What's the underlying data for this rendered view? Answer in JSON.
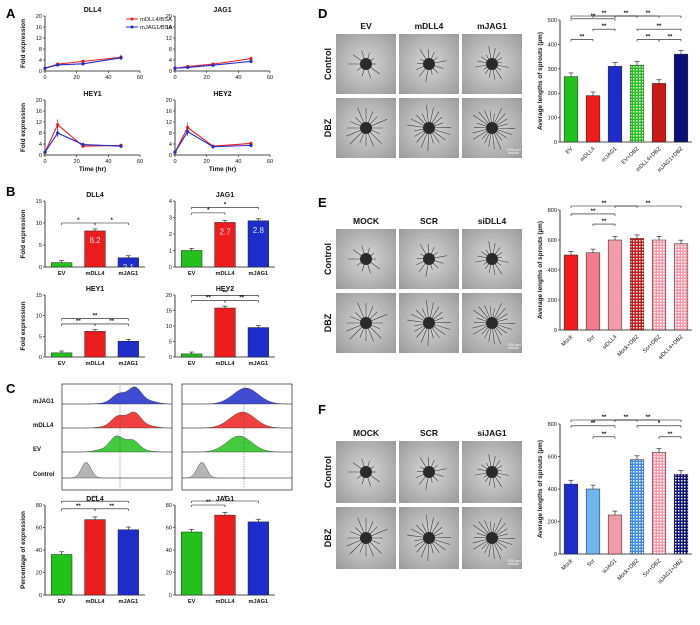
{
  "panel_labels": [
    "A",
    "B",
    "C",
    "D",
    "E",
    "F"
  ],
  "colors": {
    "red": "#ee1c1c",
    "blue": "#1f2ccc",
    "green": "#22c11b",
    "darkred": "#c81818",
    "navy": "#0a0f7a",
    "pink": "#f59aa9",
    "lightblue": "#6fb6ee",
    "grey": "#a8a8a8"
  },
  "panel_a": {
    "legend": [
      "mDLL4/BSA",
      "mJAG1/BSA"
    ],
    "xlabel": "Time (hr)",
    "ylabel": "Fold expression"
  },
  "panel_b": {
    "ylabel": "Fold expression"
  },
  "panel_c": {
    "hist_rows": [
      "mJAG1",
      "mDLL4",
      "EV",
      "Control"
    ],
    "ylabel": "Percentage of expression"
  },
  "micro_d": {
    "cols": [
      "EV",
      "mDLL4",
      "mJAG1"
    ],
    "rows": [
      "Control",
      "DBZ"
    ],
    "scale": "200 µm"
  },
  "micro_e": {
    "cols": [
      "MOCK",
      "SCR",
      "siDLL4"
    ],
    "rows": [
      "Control",
      "DBZ"
    ],
    "scale": "200 µm"
  },
  "micro_f": {
    "cols": [
      "MOCK",
      "SCR",
      "siJAG1"
    ],
    "rows": [
      "Control",
      "DBZ"
    ],
    "scale": "200 µm"
  },
  "chart_data": [
    {
      "id": "A1",
      "panel": "A",
      "type": "line",
      "title": "DLL4",
      "x": [
        0,
        8,
        24,
        48
      ],
      "series": [
        {
          "name": "mDLL4/BSA",
          "values": [
            1,
            2.5,
            3.5,
            5
          ]
        },
        {
          "name": "mJAG1/BSA",
          "values": [
            1,
            2.2,
            2.6,
            4.8
          ]
        }
      ],
      "xlim": [
        0,
        60
      ],
      "ylim": [
        0,
        20
      ],
      "yticks": [
        0,
        4,
        8,
        12,
        16,
        20
      ],
      "xticks": [
        0,
        20,
        40,
        60
      ],
      "xlabel": "",
      "ylabel": "Fold expression"
    },
    {
      "id": "A2",
      "panel": "A",
      "type": "line",
      "title": "JAG1",
      "x": [
        0,
        8,
        24,
        48
      ],
      "series": [
        {
          "name": "mDLL4/BSA",
          "values": [
            1,
            1.6,
            2.5,
            4.5
          ]
        },
        {
          "name": "mJAG1/BSA",
          "values": [
            1,
            1.3,
            2.1,
            3.5
          ]
        }
      ],
      "xlim": [
        0,
        60
      ],
      "ylim": [
        0,
        20
      ],
      "yticks": [
        0,
        4,
        8,
        12,
        16,
        20
      ],
      "xticks": [
        0,
        20,
        40,
        60
      ],
      "xlabel": "",
      "ylabel": ""
    },
    {
      "id": "A3",
      "panel": "A",
      "type": "line",
      "title": "HEY1",
      "x": [
        0,
        8,
        24,
        48
      ],
      "series": [
        {
          "name": "mDLL4/BSA",
          "values": [
            1,
            11,
            3.2,
            3.5
          ]
        },
        {
          "name": "mJAG1/BSA",
          "values": [
            1,
            8,
            3.8,
            3.2
          ]
        }
      ],
      "xlim": [
        0,
        60
      ],
      "ylim": [
        0,
        20
      ],
      "yticks": [
        0,
        4,
        8,
        12,
        16,
        20
      ],
      "xticks": [
        0,
        20,
        40,
        60
      ],
      "xlabel": "Time (hr)",
      "ylabel": "Fold expression"
    },
    {
      "id": "A4",
      "panel": "A",
      "type": "line",
      "title": "HEY2",
      "x": [
        0,
        8,
        24,
        48
      ],
      "series": [
        {
          "name": "mDLL4/BSA",
          "values": [
            1,
            10,
            3.2,
            4.2
          ]
        },
        {
          "name": "mJAG1/BSA",
          "values": [
            1,
            8.5,
            3.0,
            3.5
          ]
        }
      ],
      "xlim": [
        0,
        60
      ],
      "ylim": [
        0,
        20
      ],
      "yticks": [
        0,
        4,
        8,
        12,
        16,
        20
      ],
      "xticks": [
        0,
        20,
        40,
        60
      ],
      "xlabel": "Time (hr)",
      "ylabel": ""
    },
    {
      "id": "B1",
      "panel": "B",
      "type": "bar",
      "title": "DLL4",
      "categories": [
        "EV",
        "mDLL4",
        "mJAG1"
      ],
      "values": [
        1,
        8.2,
        2.1
      ],
      "labels": [
        "",
        "8.2",
        "2.1"
      ],
      "ylim": [
        0,
        15
      ],
      "yticks": [
        0,
        5,
        10,
        15
      ],
      "ylabel": "Fold expression",
      "sig": [
        {
          "a": 0,
          "b": 1,
          "text": "*",
          "level": 0
        },
        {
          "a": 1,
          "b": 2,
          "text": "*",
          "level": 0
        }
      ]
    },
    {
      "id": "B2",
      "panel": "B",
      "type": "bar",
      "title": "JAG1",
      "categories": [
        "EV",
        "mDLL4",
        "mJAG1"
      ],
      "values": [
        1,
        2.7,
        2.8
      ],
      "labels": [
        "",
        "2.7",
        "2.8"
      ],
      "ylim": [
        0,
        4
      ],
      "yticks": [
        0,
        1,
        2,
        3,
        4
      ],
      "ylabel": "",
      "sig": [
        {
          "a": 0,
          "b": 1,
          "text": "*",
          "level": 0
        },
        {
          "a": 0,
          "b": 2,
          "text": "*",
          "level": 1
        }
      ]
    },
    {
      "id": "B3",
      "panel": "B",
      "type": "bar",
      "title": "HEY1",
      "categories": [
        "EV",
        "mDLL4",
        "mJAG1"
      ],
      "values": [
        1,
        6.2,
        3.8
      ],
      "labels": [
        "",
        "",
        ""
      ],
      "ylim": [
        0,
        15
      ],
      "yticks": [
        0,
        5,
        10,
        15
      ],
      "ylabel": "Fold expression",
      "sig": [
        {
          "a": 0,
          "b": 1,
          "text": "**",
          "level": 0
        },
        {
          "a": 1,
          "b": 2,
          "text": "**",
          "level": 0
        },
        {
          "a": 0,
          "b": 2,
          "text": "**",
          "level": 1
        }
      ]
    },
    {
      "id": "B4",
      "panel": "B",
      "type": "bar",
      "title": "HEY2",
      "categories": [
        "EV",
        "mDLL4",
        "mJAG1"
      ],
      "values": [
        1,
        15.8,
        9.5
      ],
      "labels": [
        "",
        "",
        ""
      ],
      "ylim": [
        0,
        20
      ],
      "yticks": [
        0,
        5,
        10,
        15,
        20
      ],
      "ylabel": "",
      "sig": [
        {
          "a": 0,
          "b": 1,
          "text": "**",
          "level": 0
        },
        {
          "a": 1,
          "b": 2,
          "text": "**",
          "level": 0
        },
        {
          "a": 0,
          "b": 2,
          "text": "**",
          "level": 1
        }
      ]
    },
    {
      "id": "C1",
      "panel": "C",
      "type": "bar",
      "title": "DLL4",
      "categories": [
        "EV",
        "mDLL4",
        "mJAG1"
      ],
      "values": [
        36,
        67,
        58
      ],
      "labels": [
        "",
        "",
        ""
      ],
      "ylim": [
        0,
        80
      ],
      "yticks": [
        0,
        20,
        40,
        60,
        80
      ],
      "ylabel": "Percentage of expression",
      "sig": [
        {
          "a": 0,
          "b": 1,
          "text": "**",
          "level": 0
        },
        {
          "a": 1,
          "b": 2,
          "text": "**",
          "level": 0
        },
        {
          "a": 0,
          "b": 2,
          "text": "**",
          "level": 1
        }
      ]
    },
    {
      "id": "C2",
      "panel": "C",
      "type": "bar",
      "title": "JAG1",
      "categories": [
        "EV",
        "mDLL4",
        "mJAG1"
      ],
      "values": [
        56,
        71,
        65
      ],
      "labels": [
        "",
        "",
        ""
      ],
      "ylim": [
        0,
        80
      ],
      "yticks": [
        0,
        20,
        40,
        60,
        80
      ],
      "ylabel": "",
      "sig": [
        {
          "a": 0,
          "b": 1,
          "text": "**",
          "level": 0
        },
        {
          "a": 0,
          "b": 2,
          "text": "*",
          "level": 1
        }
      ]
    },
    {
      "id": "D",
      "panel": "D",
      "type": "bar",
      "title": "",
      "categories": [
        "EV",
        "mDLL4",
        "mJAG1",
        "EV+DBZ",
        "mDLL4+DBZ",
        "mJAG1+DBZ"
      ],
      "values": [
        268,
        190,
        310,
        315,
        240,
        360
      ],
      "labels": [
        "",
        "",
        "",
        "",
        "",
        ""
      ],
      "ylim": [
        0,
        500
      ],
      "yticks": [
        0,
        100,
        200,
        300,
        400,
        500
      ],
      "ylabel": "Average lengths of sprouts (µm)",
      "sig": [
        {
          "a": 0,
          "b": 1,
          "text": "**",
          "level": 0
        },
        {
          "a": 1,
          "b": 2,
          "text": "**",
          "level": 1
        },
        {
          "a": 0,
          "b": 2,
          "text": "**",
          "level": 2
        },
        {
          "a": 0,
          "b": 3,
          "text": "**",
          "level": 3
        },
        {
          "a": 1,
          "b": 4,
          "text": "**",
          "level": 4
        },
        {
          "a": 2,
          "b": 5,
          "text": "**",
          "level": 5
        },
        {
          "a": 3,
          "b": 4,
          "text": "**",
          "level": 0
        },
        {
          "a": 4,
          "b": 5,
          "text": "**",
          "level": 0
        },
        {
          "a": 3,
          "b": 5,
          "text": "**",
          "level": 1
        }
      ]
    },
    {
      "id": "E",
      "panel": "E",
      "type": "bar",
      "title": "",
      "categories": [
        "Mock",
        "Scr",
        "siDLL4",
        "Mock+DBZ",
        "Scr+DBZ",
        "siDLL4+DBZ"
      ],
      "values": [
        500,
        515,
        600,
        610,
        600,
        575
      ],
      "labels": [
        "",
        "",
        "",
        "",
        "",
        ""
      ],
      "ylim": [
        0,
        800
      ],
      "yticks": [
        0,
        200,
        400,
        600,
        800
      ],
      "ylabel": "Average lengths of sprouts (µm)",
      "sig": [
        {
          "a": 1,
          "b": 2,
          "text": "**",
          "level": 0
        },
        {
          "a": 0,
          "b": 2,
          "text": "**",
          "level": 1
        },
        {
          "a": 0,
          "b": 3,
          "text": "**",
          "level": 2
        },
        {
          "a": 2,
          "b": 5,
          "text": "**",
          "level": 3
        }
      ]
    },
    {
      "id": "F",
      "panel": "F",
      "type": "bar",
      "title": "",
      "categories": [
        "Mock",
        "Scr",
        "siJAG1",
        "Mock+DBZ",
        "Scr+DBZ",
        "siJAG1+DBZ"
      ],
      "values": [
        430,
        400,
        240,
        580,
        625,
        490
      ],
      "labels": [
        "",
        "",
        "",
        "",
        "",
        ""
      ],
      "ylim": [
        0,
        800
      ],
      "yticks": [
        0,
        200,
        400,
        600,
        800
      ],
      "ylabel": "Average lengths of sprouts (µm)",
      "sig": [
        {
          "a": 1,
          "b": 2,
          "text": "**",
          "level": 0
        },
        {
          "a": 0,
          "b": 2,
          "text": "**",
          "level": 1
        },
        {
          "a": 0,
          "b": 3,
          "text": "**",
          "level": 2
        },
        {
          "a": 1,
          "b": 4,
          "text": "**",
          "level": 3
        },
        {
          "a": 2,
          "b": 5,
          "text": "**",
          "level": 4
        },
        {
          "a": 4,
          "b": 5,
          "text": "**",
          "level": 0
        },
        {
          "a": 3,
          "b": 5,
          "text": "*",
          "level": 1
        }
      ]
    }
  ]
}
